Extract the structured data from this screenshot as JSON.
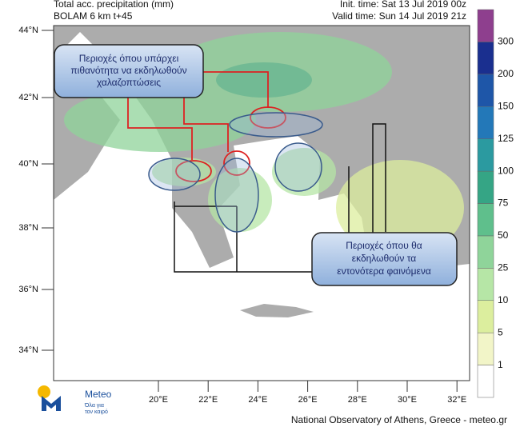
{
  "header": {
    "title_left": [
      "Total acc. precipitation (mm)",
      "BOLAM 6 km t+45"
    ],
    "title_right": [
      "Init. time: Sat 13 Jul 2019 00z",
      "Valid time: Sun 14 Jul 2019 21z"
    ]
  },
  "map": {
    "lat_labels": [
      "44°N",
      "42°N",
      "40°N",
      "38°N",
      "36°N",
      "34°N"
    ],
    "lon_labels": [
      "20°E",
      "22°E",
      "24°E",
      "26°E",
      "28°E",
      "30°E",
      "32°E"
    ]
  },
  "annotations": [
    {
      "lines": [
        "Περιοχές όπου υπάρχει",
        "πιθανότητα να εκδηλωθούν",
        "χαλαζοπτώσεις"
      ]
    },
    {
      "lines": [
        "Περιοχές όπου θα",
        "εκδηλωθούν τα",
        "εντονότερα φαινόμενα"
      ]
    }
  ],
  "colorbar": {
    "levels": [
      1,
      5,
      10,
      25,
      50,
      75,
      100,
      125,
      150,
      200,
      300
    ],
    "colors": [
      "#ffffff",
      "#f2f5c8",
      "#dcee9e",
      "#b6e6a6",
      "#8fd49a",
      "#5fbf8c",
      "#35a585",
      "#2b9aa0",
      "#2378b8",
      "#1e56a8",
      "#1a2f8f",
      "#8e3f8e"
    ]
  },
  "logo": {
    "name": "Meteo",
    "tagline": [
      "Όλα για",
      "τον καιρό"
    ]
  },
  "footer": "National Observatory of Athens, Greece - meteo.gr"
}
